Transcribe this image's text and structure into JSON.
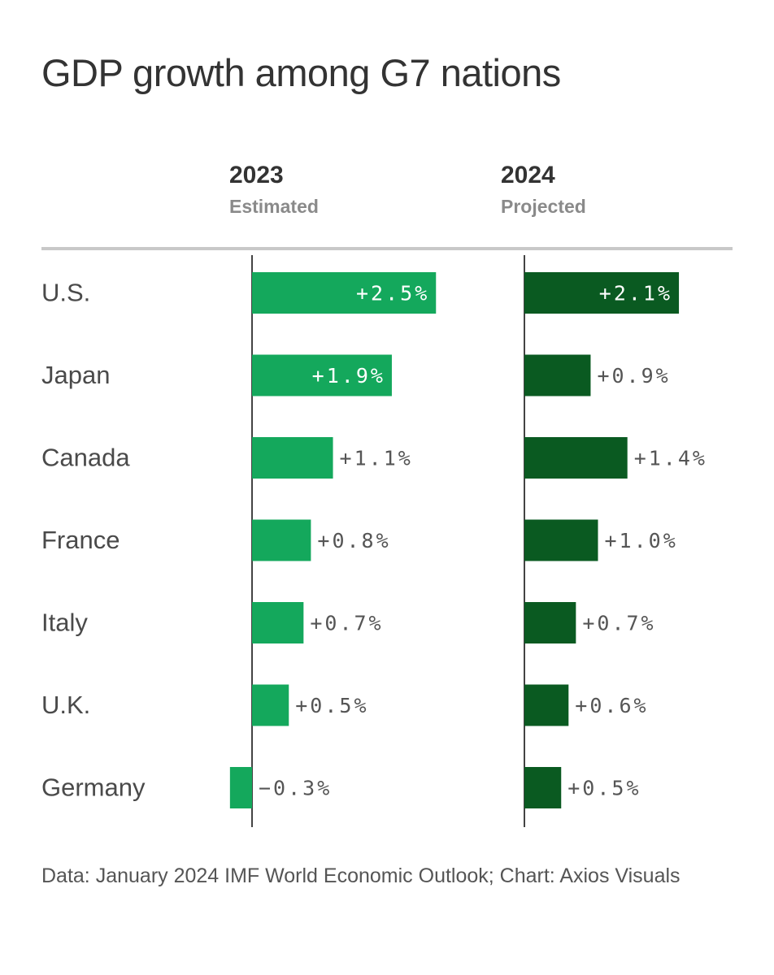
{
  "title": "GDP growth among G7 nations",
  "columns": [
    {
      "year": "2023",
      "subtitle": "Estimated"
    },
    {
      "year": "2024",
      "subtitle": "Projected"
    }
  ],
  "source": "Data: January 2024 IMF World Economic Outlook; Chart: Axios Visuals",
  "colors": {
    "estimated_2023": "#14a85c",
    "projected_2024": "#0a5a21"
  },
  "chart_data": {
    "type": "bar",
    "orientation": "horizontal",
    "categories": [
      "U.S.",
      "Japan",
      "Canada",
      "France",
      "Italy",
      "U.K.",
      "Germany"
    ],
    "series": [
      {
        "name": "2023",
        "values": [
          2.5,
          1.9,
          1.1,
          0.8,
          0.7,
          0.5,
          -0.3
        ],
        "labels": [
          "+2.5%",
          "+1.9%",
          "+1.1%",
          "+0.8%",
          "+0.7%",
          "+0.5%",
          "−0.3%"
        ]
      },
      {
        "name": "2024",
        "values": [
          2.1,
          0.9,
          1.4,
          1.0,
          0.7,
          0.6,
          0.5
        ],
        "labels": [
          "+2.1%",
          "+0.9%",
          "+1.4%",
          "+1.0%",
          "+0.7%",
          "+0.6%",
          "+0.5%"
        ]
      }
    ]
  }
}
